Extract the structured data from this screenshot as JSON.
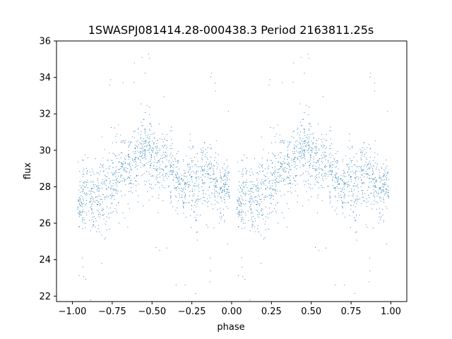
{
  "chart_data": {
    "type": "scatter",
    "title": "1SWASPJ081414.28-000438.3 Period 2163811.25s",
    "xlabel": "phase",
    "ylabel": "flux",
    "xlim": [
      -1.1,
      1.1
    ],
    "ylim": [
      21.7,
      36.0
    ],
    "x_ticks": [
      -1.0,
      -0.75,
      -0.5,
      -0.25,
      0.0,
      0.25,
      0.5,
      0.75,
      1.0
    ],
    "x_tick_labels": [
      "−1.00",
      "−0.75",
      "−0.50",
      "−0.25",
      "0.00",
      "0.25",
      "0.50",
      "0.75",
      "1.00"
    ],
    "y_ticks": [
      22,
      24,
      26,
      28,
      30,
      32,
      34,
      36
    ],
    "y_tick_labels": [
      "22",
      "24",
      "26",
      "28",
      "30",
      "32",
      "34",
      "36"
    ],
    "grid": false,
    "legend": "none",
    "series_color": "#1f77b4",
    "phase_gaps": [
      [
        -0.05,
        0.05
      ]
    ],
    "observed_clusters": [
      {
        "phase": 0.05,
        "y_center": 27.0,
        "y_spread": 1.0
      },
      {
        "phase": 0.08,
        "y_center": 27.8,
        "y_spread": 1.3
      },
      {
        "phase": 0.12,
        "y_center": 27.2,
        "y_spread": 1.2
      },
      {
        "phase": 0.16,
        "y_center": 27.6,
        "y_spread": 1.4
      },
      {
        "phase": 0.2,
        "y_center": 27.8,
        "y_spread": 1.5
      },
      {
        "phase": 0.24,
        "y_center": 28.2,
        "y_spread": 1.5
      },
      {
        "phase": 0.28,
        "y_center": 28.6,
        "y_spread": 1.4
      },
      {
        "phase": 0.32,
        "y_center": 28.9,
        "y_spread": 1.3
      },
      {
        "phase": 0.36,
        "y_center": 29.0,
        "y_spread": 1.2
      },
      {
        "phase": 0.4,
        "y_center": 29.3,
        "y_spread": 1.3
      },
      {
        "phase": 0.44,
        "y_center": 29.9,
        "y_spread": 1.3
      },
      {
        "phase": 0.47,
        "y_center": 30.1,
        "y_spread": 1.2
      },
      {
        "phase": 0.5,
        "y_center": 29.6,
        "y_spread": 1.2
      },
      {
        "phase": 0.54,
        "y_center": 29.2,
        "y_spread": 1.2
      },
      {
        "phase": 0.58,
        "y_center": 29.4,
        "y_spread": 1.1
      },
      {
        "phase": 0.62,
        "y_center": 29.0,
        "y_spread": 1.1
      },
      {
        "phase": 0.66,
        "y_center": 28.4,
        "y_spread": 1.2
      },
      {
        "phase": 0.7,
        "y_center": 28.0,
        "y_spread": 1.3
      },
      {
        "phase": 0.74,
        "y_center": 28.6,
        "y_spread": 1.4
      },
      {
        "phase": 0.78,
        "y_center": 28.0,
        "y_spread": 1.4
      },
      {
        "phase": 0.82,
        "y_center": 28.8,
        "y_spread": 1.4
      },
      {
        "phase": 0.86,
        "y_center": 28.5,
        "y_spread": 1.3
      },
      {
        "phase": 0.9,
        "y_center": 28.0,
        "y_spread": 1.2
      },
      {
        "phase": 0.94,
        "y_center": 27.8,
        "y_spread": 1.1
      },
      {
        "phase": 0.97,
        "y_center": 28.2,
        "y_spread": 0.8
      }
    ]
  }
}
